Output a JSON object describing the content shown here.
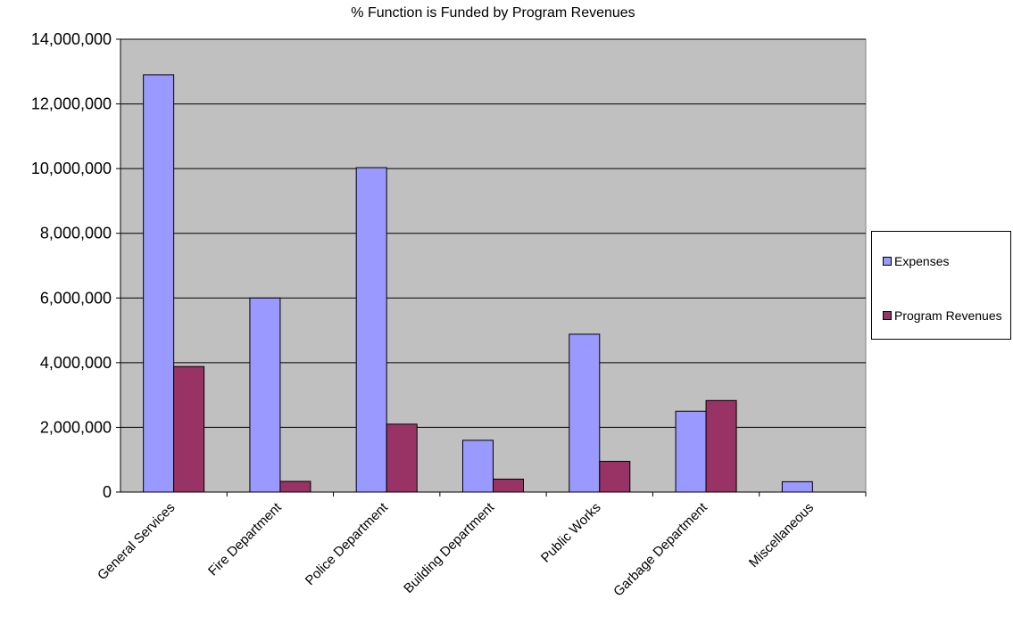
{
  "chart_data": {
    "type": "bar",
    "title": "% Function is Funded by Program Revenues",
    "xlabel": "",
    "ylabel": "",
    "categories": [
      "General Services",
      "Fire Department",
      "Police Department",
      "Building Department",
      "Public Works",
      "Garbage Department",
      "Miscellaneous"
    ],
    "series": [
      {
        "name": "Expenses",
        "color": "#9999FF",
        "values": [
          12900000,
          6000000,
          10030000,
          1600000,
          4880000,
          2500000,
          320000
        ]
      },
      {
        "name": "Program Revenues",
        "color": "#993366",
        "values": [
          3880000,
          330000,
          2100000,
          400000,
          950000,
          2830000,
          0
        ]
      }
    ],
    "ylim": [
      0,
      14000000
    ],
    "yticks": [
      0,
      2000000,
      4000000,
      6000000,
      8000000,
      10000000,
      12000000,
      14000000
    ],
    "ytick_labels": [
      "0",
      "2,000,000",
      "4,000,000",
      "6,000,000",
      "8,000,000",
      "10,000,000",
      "12,000,000",
      "14,000,000"
    ],
    "grid": true,
    "legend_position": "right",
    "plot_background": "#C0C0C0"
  }
}
